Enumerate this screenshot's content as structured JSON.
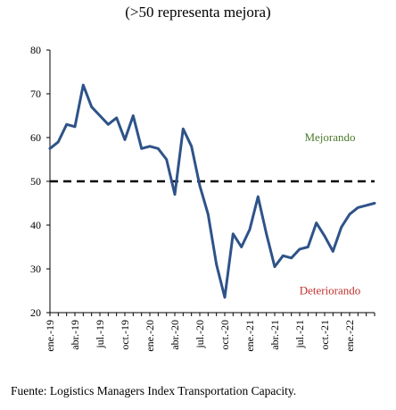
{
  "subtitle": "(>50 representa mejora)",
  "source": "Fuente: Logistics Managers Index Transportation Capacity.",
  "colors": {
    "line": "#2e5389",
    "threshold": "#000000",
    "axis": "#000000",
    "improving": "#4f7a2e",
    "deteriorating": "#c0302c"
  },
  "chart_data": {
    "type": "line",
    "title": "",
    "xlabel": "",
    "ylabel": "",
    "ylim": [
      20,
      80
    ],
    "yticks": [
      20,
      30,
      40,
      50,
      60,
      70,
      80
    ],
    "x_tick_labels": [
      "ene.-19",
      "abr.-19",
      "jul.-19",
      "oct.-19",
      "ene.-20",
      "abr.-20",
      "jul.-20",
      "oct.-20",
      "ene.-21",
      "abr.-21",
      "jul.-21",
      "oct.-21",
      "ene.-22"
    ],
    "x_tick_step": 3,
    "months": [
      "ene.-19",
      "feb.-19",
      "mar.-19",
      "abr.-19",
      "may.-19",
      "jun.-19",
      "jul.-19",
      "ago.-19",
      "sep.-19",
      "oct.-19",
      "nov.-19",
      "dic.-19",
      "ene.-20",
      "feb.-20",
      "mar.-20",
      "abr.-20",
      "may.-20",
      "jun.-20",
      "jul.-20",
      "ago.-20",
      "sep.-20",
      "oct.-20",
      "nov.-20",
      "dic.-20",
      "ene.-21",
      "feb.-21",
      "mar.-21",
      "abr.-21",
      "may.-21",
      "jun.-21",
      "jul.-21",
      "ago.-21",
      "sep.-21",
      "oct.-21",
      "nov.-21",
      "dic.-21",
      "ene.-22",
      "feb.-22",
      "mar.-22",
      "abr.-22"
    ],
    "series": [
      {
        "values": [
          57.5,
          59.0,
          63.0,
          62.5,
          72.0,
          67.0,
          65.0,
          63.0,
          64.5,
          59.5,
          65.0,
          57.5,
          58.0,
          57.5,
          55.0,
          47.0,
          62.0,
          58.0,
          49.0,
          42.5,
          31.0,
          23.5,
          38.0,
          35.0,
          39.0,
          46.5,
          38.0,
          30.5,
          33.0,
          32.5,
          34.5,
          35.0,
          40.5,
          37.5,
          34.0,
          39.5,
          42.5,
          44.0,
          44.5,
          45.0
        ]
      }
    ],
    "threshold": 50,
    "annotations": [
      {
        "text": "Mejorando",
        "y": 60
      },
      {
        "text": "Deteriorando",
        "y": 25
      }
    ],
    "grid": false,
    "legend": "none"
  }
}
